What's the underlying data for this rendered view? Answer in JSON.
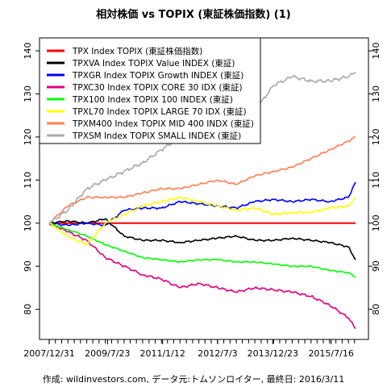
{
  "title": "相対株価 vs TOPIX (東証株価指数) (1)",
  "caption": "作成: wildinvestors.com, データ元:トムソンロイター, 最終日: 2016/3/11",
  "chart_data": {
    "type": "line",
    "title": "相対株価 vs TOPIX (東証株価指数) (1)",
    "xlabel": "",
    "ylabel": "",
    "x_tick_labels": [
      "2007/12/31",
      "2009/7/23",
      "2011/1/12",
      "2012/7/3",
      "2013/12/23",
      "2015/7/16"
    ],
    "x_ticks": [
      "2007-12-31",
      "2009-07-23",
      "2011-01-12",
      "2012-07-03",
      "2013-12-23",
      "2015-07-16"
    ],
    "y_ticks": [
      80,
      90,
      100,
      110,
      120,
      130,
      140
    ],
    "ylim": [
      73,
      143
    ],
    "xlim": [
      "2007-12-31",
      "2016-03-11"
    ],
    "y_axis": "both sides",
    "grid": false,
    "legend_position": "top-left",
    "series": [
      {
        "name": "TPX Index TOPIX (東証株価指数)",
        "color": "#ff0000",
        "x": [
          "2007-12-31",
          "2016-03-11"
        ],
        "values": [
          100,
          100
        ]
      },
      {
        "name": "TPXVA Index TOPIX Value INDEX (東証)",
        "color": "#000000",
        "x": [
          "2007-12-31",
          "2008-06-30",
          "2009-01-01",
          "2009-07-01",
          "2010-01-01",
          "2010-07-01",
          "2011-01-01",
          "2011-07-01",
          "2012-01-01",
          "2012-07-01",
          "2013-01-01",
          "2013-07-01",
          "2014-01-01",
          "2014-07-01",
          "2015-01-01",
          "2015-07-01",
          "2016-01-01",
          "2016-03-11"
        ],
        "values": [
          100,
          100.5,
          100,
          101,
          97,
          96,
          96,
          95.5,
          96,
          96.5,
          97,
          96,
          96,
          96.5,
          96,
          95.5,
          94.5,
          91.5
        ]
      },
      {
        "name": "TPXGR Index TOPIX Growth INDEX (東証)",
        "color": "#0000ff",
        "x": [
          "2007-12-31",
          "2008-06-30",
          "2009-01-01",
          "2009-07-01",
          "2010-01-01",
          "2010-07-01",
          "2011-01-01",
          "2011-07-01",
          "2012-01-01",
          "2012-07-01",
          "2013-01-01",
          "2013-07-01",
          "2014-01-01",
          "2014-07-01",
          "2015-01-01",
          "2015-07-01",
          "2016-01-01",
          "2016-03-11"
        ],
        "values": [
          100,
          99.5,
          100,
          99.5,
          103,
          103.5,
          103.5,
          105,
          104.5,
          104,
          103.5,
          105,
          105.5,
          105,
          105.5,
          105,
          106,
          109.5
        ]
      },
      {
        "name": "TPXC30 Index TOPIX CORE 30 IDX (東証)",
        "color": "#e0007f",
        "x": [
          "2007-12-31",
          "2008-06-30",
          "2009-01-01",
          "2009-07-01",
          "2010-01-01",
          "2010-07-01",
          "2011-01-01",
          "2011-07-01",
          "2012-01-01",
          "2012-07-01",
          "2013-01-01",
          "2013-07-01",
          "2014-01-01",
          "2014-07-01",
          "2015-01-01",
          "2015-07-01",
          "2016-01-01",
          "2016-03-11"
        ],
        "values": [
          100,
          98,
          96,
          92,
          90,
          88,
          87,
          85,
          86,
          85,
          84,
          85,
          84.5,
          84,
          83,
          81,
          78,
          75.5
        ]
      },
      {
        "name": "TPX100 Index TOPIX 100 INDEX (東証)",
        "color": "#00ff00",
        "x": [
          "2007-12-31",
          "2008-06-30",
          "2009-01-01",
          "2009-07-01",
          "2010-01-01",
          "2010-07-01",
          "2011-01-01",
          "2011-07-01",
          "2012-01-01",
          "2012-07-01",
          "2013-01-01",
          "2013-07-01",
          "2014-01-01",
          "2014-07-01",
          "2015-01-01",
          "2015-07-01",
          "2016-01-01",
          "2016-03-11"
        ],
        "values": [
          100,
          98.5,
          97,
          95,
          93.5,
          92,
          91.5,
          91,
          91.5,
          91.5,
          91,
          91,
          90.5,
          90,
          90,
          89,
          88.5,
          87.5
        ]
      },
      {
        "name": "TPXL70 Index TOPIX LARGE 70 IDX (東証)",
        "color": "#ffff00",
        "x": [
          "2007-12-31",
          "2008-06-30",
          "2009-01-01",
          "2009-07-01",
          "2010-01-01",
          "2010-07-01",
          "2011-01-01",
          "2011-07-01",
          "2012-01-01",
          "2012-07-01",
          "2013-01-01",
          "2013-07-01",
          "2014-01-01",
          "2014-07-01",
          "2015-01-01",
          "2015-07-01",
          "2016-01-01",
          "2016-03-11"
        ],
        "values": [
          100,
          97,
          95,
          100,
          102,
          104,
          105,
          106,
          105,
          104,
          103,
          103.5,
          102,
          102.5,
          102.5,
          103.5,
          104,
          106
        ]
      },
      {
        "name": "TPXM400 Index TOPIX MID 400 INDX (東証)",
        "color": "#ff7f50",
        "x": [
          "2007-12-31",
          "2008-06-30",
          "2009-01-01",
          "2009-07-01",
          "2010-01-01",
          "2010-07-01",
          "2011-01-01",
          "2011-07-01",
          "2012-01-01",
          "2012-07-01",
          "2013-01-01",
          "2013-07-01",
          "2014-01-01",
          "2014-07-01",
          "2015-01-01",
          "2015-07-01",
          "2016-01-01",
          "2016-03-11"
        ],
        "values": [
          100,
          104,
          106,
          106,
          106,
          107,
          108,
          108,
          109,
          110,
          109,
          111,
          112,
          113,
          115,
          117,
          119,
          120
        ]
      },
      {
        "name": "TPXSM Index TOPIX SMALL INDEX (東証)",
        "color": "#a9a9a9",
        "x": [
          "2007-12-31",
          "2008-06-30",
          "2009-01-01",
          "2009-07-01",
          "2010-01-01",
          "2010-07-01",
          "2011-01-01",
          "2011-07-01",
          "2012-01-01",
          "2012-07-01",
          "2013-01-01",
          "2013-07-01",
          "2014-01-01",
          "2014-07-01",
          "2015-01-01",
          "2015-07-01",
          "2016-01-01",
          "2016-03-11"
        ],
        "values": [
          100,
          103,
          108,
          110,
          112,
          114,
          117,
          120,
          122,
          124,
          125,
          126,
          132,
          134,
          133,
          133,
          134,
          135
        ]
      }
    ]
  }
}
